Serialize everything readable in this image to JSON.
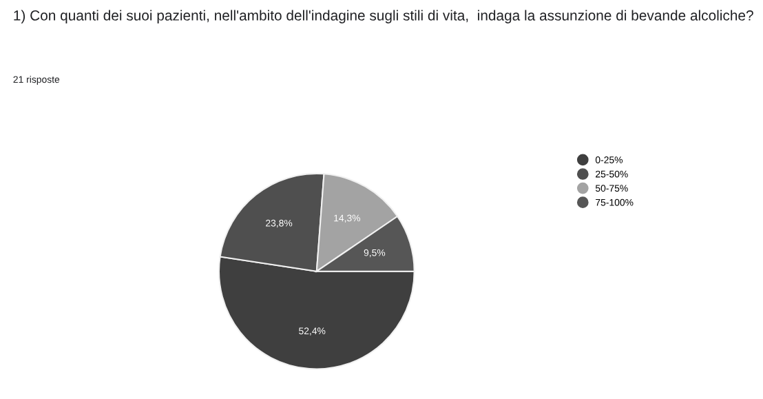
{
  "chart_data": {
    "type": "pie",
    "title": "1) Con quanti dei suoi pazienti, nell'ambito dell'indagine sugli stili di vita,  indaga la assunzione di bevande alcoliche?",
    "subtitle": "21 risposte",
    "categories": [
      "0-25%",
      "25-50%",
      "50-75%",
      "75-100%"
    ],
    "values": [
      52.4,
      23.8,
      14.3,
      9.5
    ],
    "colors": [
      "#3f3f3f",
      "#4f4f4f",
      "#a3a3a3",
      "#565656"
    ],
    "value_labels": [
      "52,4%",
      "23,8%",
      "14,3%",
      "9,5%"
    ],
    "legend": "right"
  }
}
